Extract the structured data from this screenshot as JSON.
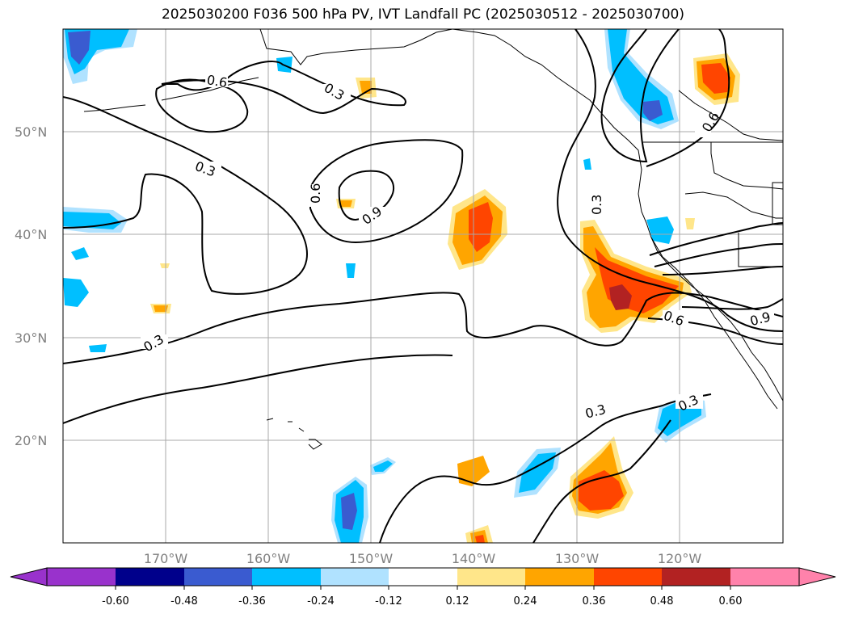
{
  "title": "2025030200 F036 500 hPa PV, IVT Landfall PC (2025030512 - 2025030700)",
  "map": {
    "lat_labels": [
      "50°N",
      "40°N",
      "30°N",
      "20°N"
    ],
    "lon_labels": [
      "170°W",
      "160°W",
      "150°W",
      "140°W",
      "130°W",
      "120°W"
    ],
    "gridlines": true,
    "contour_labels": [
      "0.6",
      "0.3",
      "0.3",
      "0.6",
      "0.9",
      "0.3",
      "0.3",
      "0.6",
      "0.9",
      "0.3",
      "0.3",
      "0.6",
      "0.9"
    ]
  },
  "colorbar": {
    "ticks": [
      "-0.60",
      "-0.48",
      "-0.36",
      "-0.24",
      "-0.12",
      "0.12",
      "0.24",
      "0.36",
      "0.48",
      "0.60"
    ],
    "colors": [
      "#9932cc",
      "#00008b",
      "#3a5bd0",
      "#00bfff",
      "#b0e2ff",
      "#ffffff",
      "#ffe68a",
      "#ffa500",
      "#ff4500",
      "#b22222",
      "#ff82ab"
    ],
    "extend": "both"
  },
  "colors": {
    "neg_light": "#b0e2ff",
    "neg_mid": "#00bfff",
    "neg_strong": "#3a5bd0",
    "pos_light": "#ffe68a",
    "pos_mid": "#ffa500",
    "pos_strong": "#ff4500",
    "pos_max": "#b22222"
  }
}
